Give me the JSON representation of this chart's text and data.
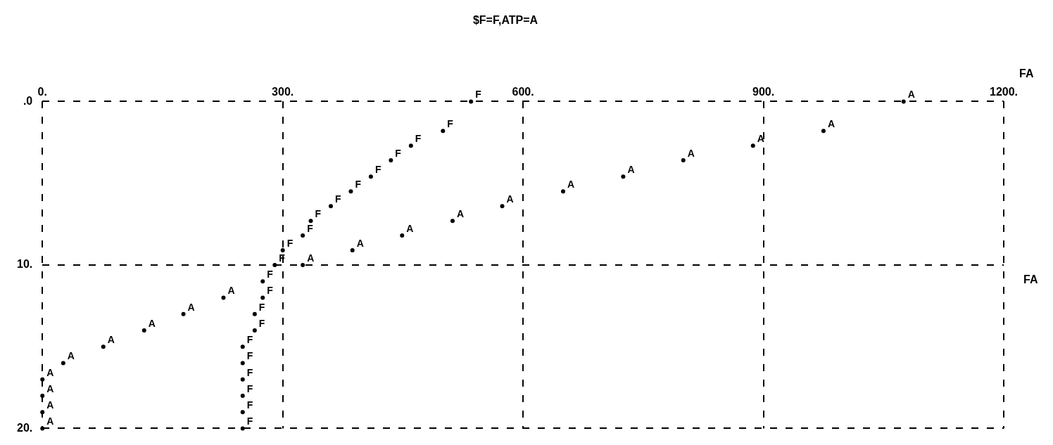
{
  "chart_data": {
    "type": "scatter",
    "title": "$F=F,ATP=A",
    "xlabel": "FA",
    "ylabel": "FA",
    "xlim": [
      0,
      1200
    ],
    "xticks": [
      {
        "value": 0,
        "label": "0."
      },
      {
        "value": 300,
        "label": "300."
      },
      {
        "value": 600,
        "label": "600."
      },
      {
        "value": 900,
        "label": "900."
      },
      {
        "value": 1200,
        "label": "1200."
      }
    ],
    "ylim": [
      20,
      0
    ],
    "yticks": [
      {
        "value": 0,
        "label": ".0"
      },
      {
        "value": 10,
        "label": "10."
      },
      {
        "value": 20,
        "label": "20."
      }
    ],
    "grid": true,
    "line_style": "dashed",
    "marker": "circle",
    "series": [
      {
        "name": "F",
        "color": "#000000",
        "x": [
          535,
          500,
          460,
          435,
          410,
          385,
          360,
          335,
          325,
          300,
          290,
          275,
          275,
          265,
          265,
          250,
          250,
          250,
          250,
          250,
          250
        ],
        "values": [
          0,
          1.8,
          2.7,
          3.6,
          4.6,
          5.5,
          6.4,
          7.3,
          8.2,
          9.1,
          10,
          11,
          12,
          13,
          14,
          15,
          16,
          17,
          18,
          19,
          20
        ]
      },
      {
        "name": "A",
        "color": "#000000",
        "x": [
          1075,
          975,
          887,
          800,
          725,
          650,
          574,
          512,
          449,
          387,
          325,
          226,
          176,
          127,
          76,
          26,
          0,
          0,
          0,
          0
        ],
        "values": [
          0,
          1.8,
          2.7,
          3.6,
          4.6,
          5.5,
          6.4,
          7.3,
          8.2,
          9.1,
          10,
          12,
          13,
          14,
          15,
          16,
          17,
          18,
          19,
          20
        ]
      }
    ]
  }
}
